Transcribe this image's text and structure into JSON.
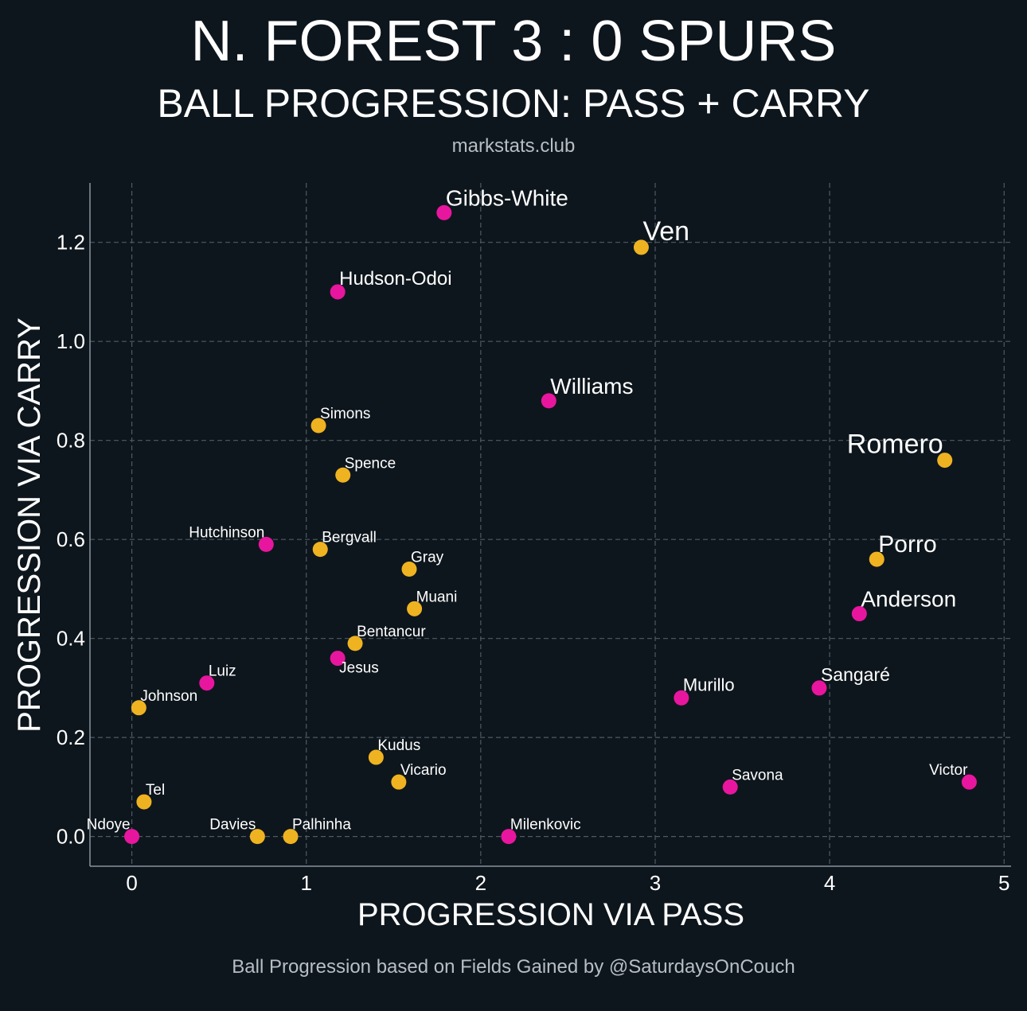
{
  "header": {
    "title": "N. FOREST 3 : 0 SPURS",
    "subtitle": "BALL PROGRESSION: PASS + CARRY",
    "source": "markstats.club"
  },
  "footer": {
    "note": "Ball Progression based on Fields Gained by @SaturdaysOnCouch"
  },
  "colors": {
    "background": "#0e161d",
    "forest": "#e8169e",
    "spurs": "#efb321"
  },
  "chart_data": {
    "type": "scatter",
    "xlabel": "PROGRESSION VIA PASS",
    "ylabel": "PROGRESSION VIA CARRY",
    "xlim": [
      -0.24,
      5.04
    ],
    "ylim": [
      -0.06,
      1.32
    ],
    "xticks": [
      0,
      1,
      2,
      3,
      4,
      5
    ],
    "yticks": [
      0.0,
      0.2,
      0.4,
      0.6,
      0.8,
      1.0,
      1.2
    ],
    "xtick_labels": [
      "0",
      "1",
      "2",
      "3",
      "4",
      "5"
    ],
    "ytick_labels": [
      "0.0",
      "0.2",
      "0.4",
      "0.6",
      "0.8",
      "1.0",
      "1.2"
    ],
    "grid": true,
    "points": [
      {
        "name": "Gibbs-White",
        "team": "forest",
        "x": 1.79,
        "y": 1.26
      },
      {
        "name": "Ven",
        "team": "spurs",
        "x": 2.92,
        "y": 1.19
      },
      {
        "name": "Hudson-Odoi",
        "team": "forest",
        "x": 1.18,
        "y": 1.1
      },
      {
        "name": "Williams",
        "team": "forest",
        "x": 2.39,
        "y": 0.88
      },
      {
        "name": "Simons",
        "team": "spurs",
        "x": 1.07,
        "y": 0.83
      },
      {
        "name": "Romero",
        "team": "spurs",
        "x": 4.66,
        "y": 0.76
      },
      {
        "name": "Spence",
        "team": "spurs",
        "x": 1.21,
        "y": 0.73
      },
      {
        "name": "Hutchinson",
        "team": "forest",
        "x": 0.77,
        "y": 0.59
      },
      {
        "name": "Bergvall",
        "team": "spurs",
        "x": 1.08,
        "y": 0.58
      },
      {
        "name": "Porro",
        "team": "spurs",
        "x": 4.27,
        "y": 0.56
      },
      {
        "name": "Gray",
        "team": "spurs",
        "x": 1.59,
        "y": 0.54
      },
      {
        "name": "Muani",
        "team": "spurs",
        "x": 1.62,
        "y": 0.46
      },
      {
        "name": "Anderson",
        "team": "forest",
        "x": 4.17,
        "y": 0.45
      },
      {
        "name": "Bentancur",
        "team": "spurs",
        "x": 1.28,
        "y": 0.39
      },
      {
        "name": "Jesus",
        "team": "forest",
        "x": 1.18,
        "y": 0.36
      },
      {
        "name": "Luiz",
        "team": "forest",
        "x": 0.43,
        "y": 0.31
      },
      {
        "name": "Sangaré",
        "team": "forest",
        "x": 3.94,
        "y": 0.3
      },
      {
        "name": "Murillo",
        "team": "forest",
        "x": 3.15,
        "y": 0.28
      },
      {
        "name": "Johnson",
        "team": "spurs",
        "x": 0.04,
        "y": 0.26
      },
      {
        "name": "Kudus",
        "team": "spurs",
        "x": 1.4,
        "y": 0.16
      },
      {
        "name": "Vicario",
        "team": "spurs",
        "x": 1.53,
        "y": 0.11
      },
      {
        "name": "Victor",
        "team": "forest",
        "x": 4.8,
        "y": 0.11
      },
      {
        "name": "Savona",
        "team": "forest",
        "x": 3.43,
        "y": 0.1
      },
      {
        "name": "Tel",
        "team": "spurs",
        "x": 0.07,
        "y": 0.07
      },
      {
        "name": "Ndoye",
        "team": "forest",
        "x": 0.0,
        "y": 0.0
      },
      {
        "name": "Davies",
        "team": "spurs",
        "x": 0.72,
        "y": 0.0
      },
      {
        "name": "Palhinha",
        "team": "spurs",
        "x": 0.91,
        "y": 0.0
      },
      {
        "name": "Milenkovic",
        "team": "forest",
        "x": 2.16,
        "y": 0.0
      }
    ]
  }
}
